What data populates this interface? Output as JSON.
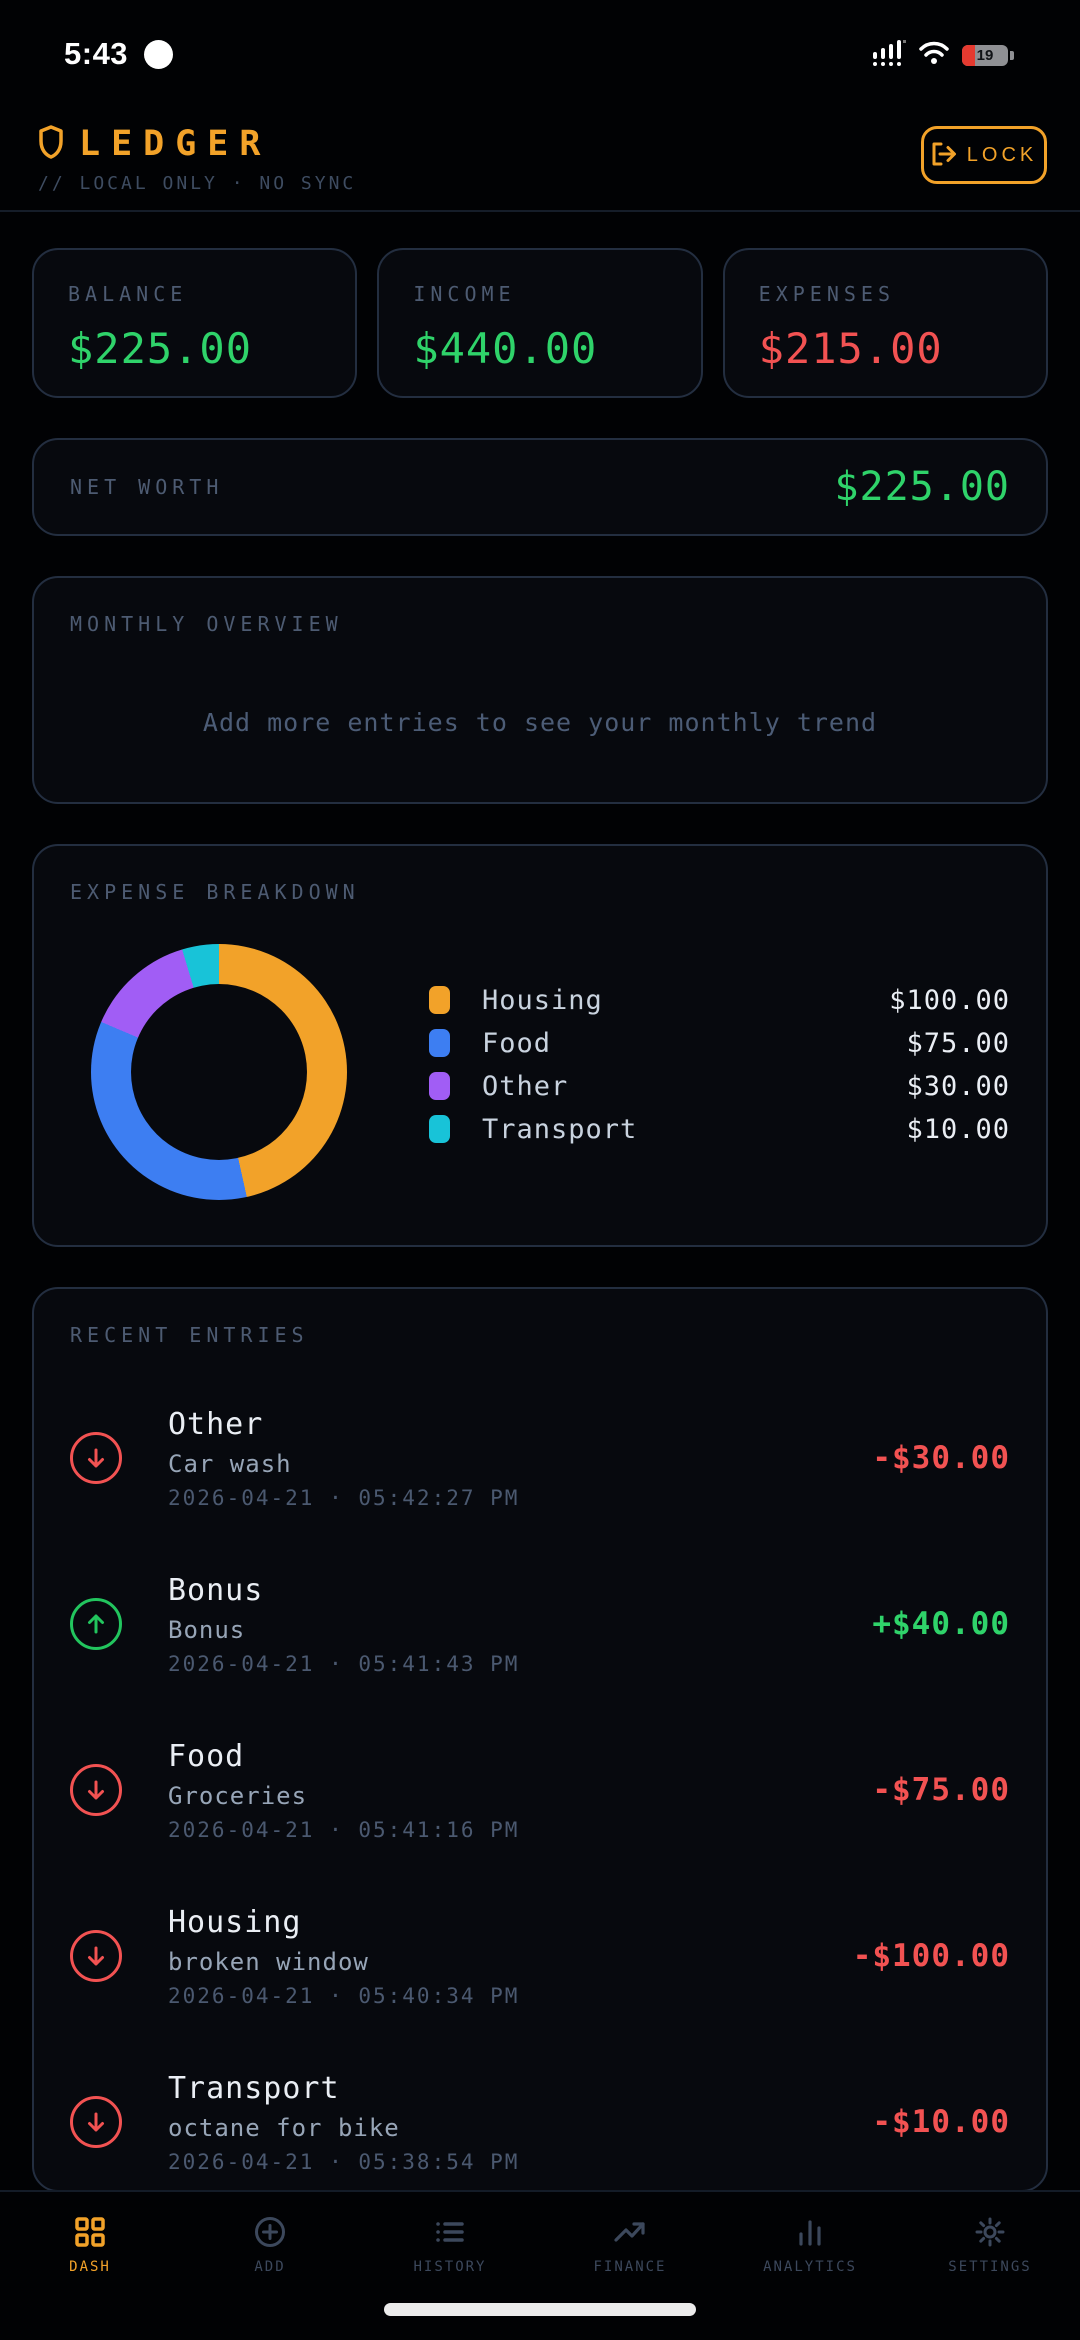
{
  "status_bar": {
    "time": "5:43",
    "battery_level": "19"
  },
  "header": {
    "app_name": "LEDGER",
    "tagline": "// LOCAL ONLY · NO SYNC",
    "lock_label": "LOCK",
    "accent_color": "#f2a229"
  },
  "summary_cards": [
    {
      "label": "BALANCE",
      "value": "$225.00",
      "tone": "positive"
    },
    {
      "label": "INCOME",
      "value": "$440.00",
      "tone": "positive"
    },
    {
      "label": "EXPENSES",
      "value": "$215.00",
      "tone": "negative"
    }
  ],
  "net_worth": {
    "label": "NET WORTH",
    "value": "$225.00",
    "tone": "positive"
  },
  "monthly_overview": {
    "label": "MONTHLY OVERVIEW",
    "empty_message": "Add more entries to see your monthly trend"
  },
  "chart_data": {
    "type": "pie",
    "donut": true,
    "title": "EXPENSE BREAKDOWN",
    "legend_position": "right",
    "total": 215,
    "segments": [
      {
        "label": "Housing",
        "value": 100,
        "display": "$100.00",
        "color": "#f2a229"
      },
      {
        "label": "Food",
        "value": 75,
        "display": "$75.00",
        "color": "#3d7ef2"
      },
      {
        "label": "Other",
        "value": 30,
        "display": "$30.00",
        "color": "#a15df5"
      },
      {
        "label": "Transport",
        "value": 10,
        "display": "$10.00",
        "color": "#18c3d8"
      }
    ]
  },
  "recent_entries": {
    "label": "RECENT ENTRIES",
    "separator": "·",
    "entries": [
      {
        "category": "Other",
        "note": "Car wash",
        "date": "2026-04-21",
        "time": "05:42:27 PM",
        "amount": "-$30.00",
        "direction": "expense"
      },
      {
        "category": "Bonus",
        "note": "Bonus",
        "date": "2026-04-21",
        "time": "05:41:43 PM",
        "amount": "+$40.00",
        "direction": "income"
      },
      {
        "category": "Food",
        "note": "Groceries",
        "date": "2026-04-21",
        "time": "05:41:16 PM",
        "amount": "-$75.00",
        "direction": "expense"
      },
      {
        "category": "Housing",
        "note": "broken window",
        "date": "2026-04-21",
        "time": "05:40:34 PM",
        "amount": "-$100.00",
        "direction": "expense"
      },
      {
        "category": "Transport",
        "note": "octane for bike",
        "date": "2026-04-21",
        "time": "05:38:54 PM",
        "amount": "-$10.00",
        "direction": "expense"
      }
    ]
  },
  "nav": {
    "items": [
      {
        "id": "dash",
        "label": "DASH",
        "icon": "grid-icon",
        "active": true
      },
      {
        "id": "add",
        "label": "ADD",
        "icon": "plus-circle-icon",
        "active": false
      },
      {
        "id": "history",
        "label": "HISTORY",
        "icon": "list-icon",
        "active": false
      },
      {
        "id": "finance",
        "label": "FINANCE",
        "icon": "trend-up-icon",
        "active": false
      },
      {
        "id": "analytics",
        "label": "ANALYTICS",
        "icon": "bar-chart-icon",
        "active": false
      },
      {
        "id": "settings",
        "label": "SETTINGS",
        "icon": "gear-icon",
        "active": false
      }
    ]
  },
  "colors": {
    "positive": "#2fd36a",
    "negative": "#f25252",
    "accent": "#f2a229",
    "card_border": "#232e40",
    "card_background": "#07090e"
  }
}
